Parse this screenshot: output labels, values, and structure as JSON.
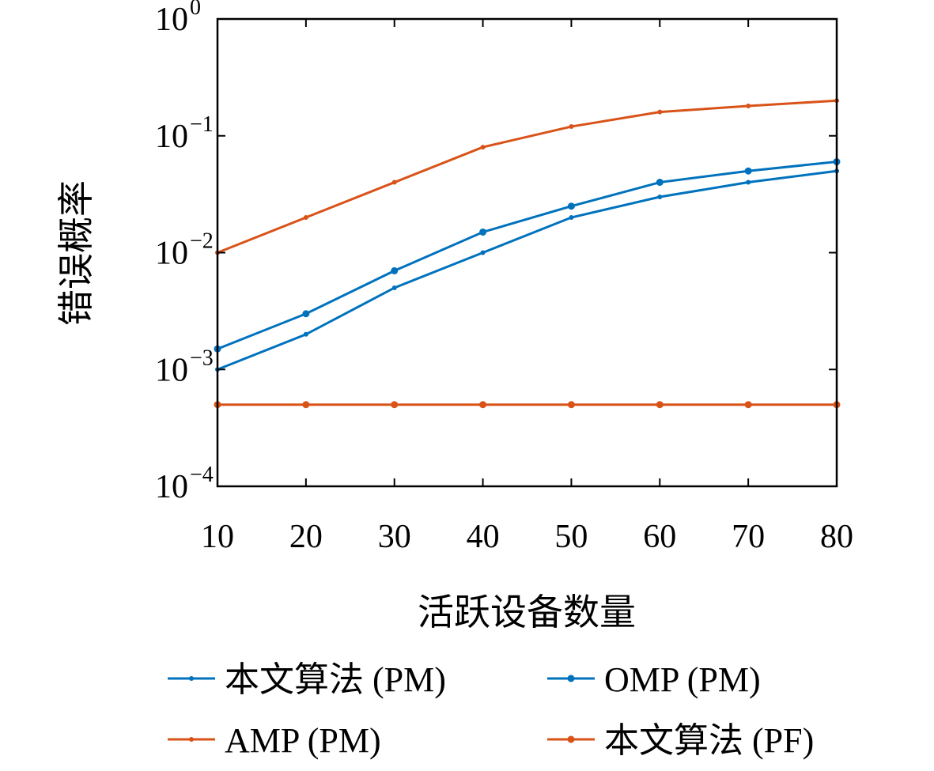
{
  "chart_data": {
    "type": "line",
    "xlabel": "活跃设备数量",
    "ylabel": "错误概率",
    "x": [
      10,
      20,
      30,
      40,
      50,
      60,
      70,
      80
    ],
    "xlim": [
      10,
      80
    ],
    "ylim": [
      0.0001,
      1
    ],
    "yscale": "log",
    "xticks": [
      "10",
      "20",
      "30",
      "40",
      "50",
      "60",
      "70",
      "80"
    ],
    "yticks": [
      {
        "base": "10",
        "exp": "0",
        "value": 1
      },
      {
        "base": "10",
        "exp": "−1",
        "value": 0.1
      },
      {
        "base": "10",
        "exp": "−2",
        "value": 0.01
      },
      {
        "base": "10",
        "exp": "−3",
        "value": 0.001
      },
      {
        "base": "10",
        "exp": "−4",
        "value": 0.0001
      }
    ],
    "grid": false,
    "legend_placement": "bottom",
    "series": [
      {
        "name": "本文算法 (PM)",
        "color": "#0072BD",
        "marker": "small-dot",
        "values": [
          0.001,
          0.002,
          0.005,
          0.01,
          0.02,
          0.03,
          0.04,
          0.05
        ]
      },
      {
        "name": "OMP (PM)",
        "color": "#0072BD",
        "marker": "dot",
        "values": [
          0.0015,
          0.003,
          0.007,
          0.015,
          0.025,
          0.04,
          0.05,
          0.06
        ]
      },
      {
        "name": "AMP (PM)",
        "color": "#D95319",
        "marker": "small-dot",
        "values": [
          0.01,
          0.02,
          0.04,
          0.08,
          0.12,
          0.16,
          0.18,
          0.2
        ]
      },
      {
        "name": "本文算法 (PF)",
        "color": "#D95319",
        "marker": "dot",
        "values": [
          0.0005,
          0.0005,
          0.0005,
          0.0005,
          0.0005,
          0.0005,
          0.0005,
          0.0005
        ]
      }
    ]
  }
}
